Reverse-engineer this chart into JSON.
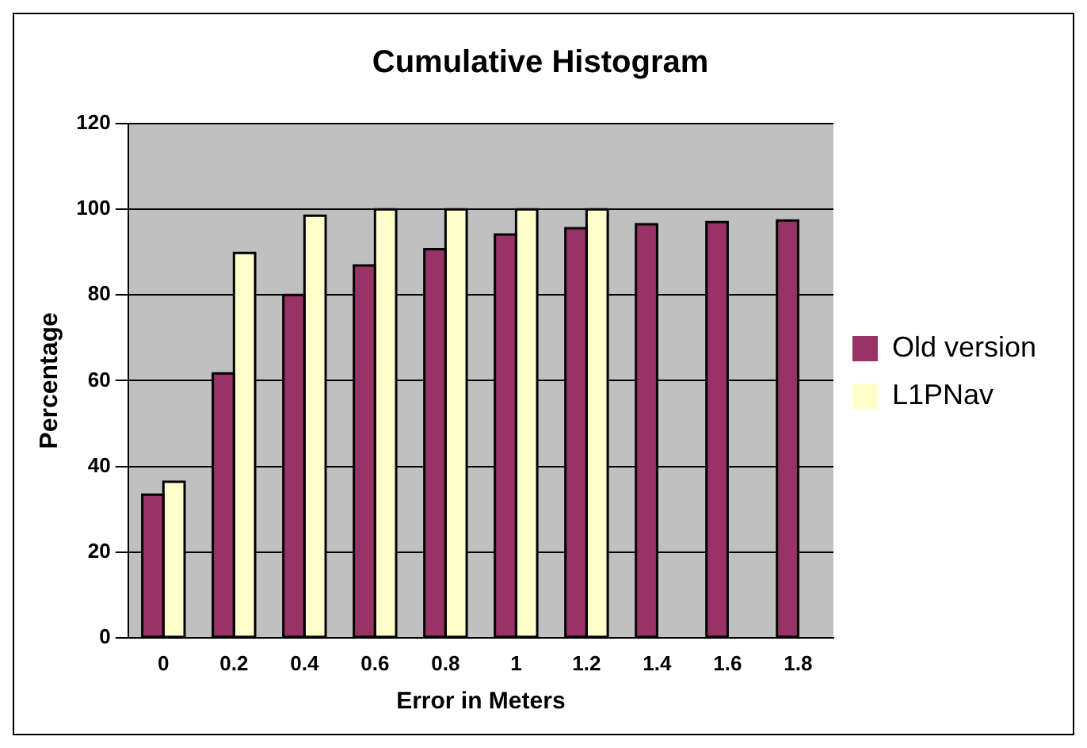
{
  "chart_data": {
    "type": "bar",
    "title": "Cumulative Histogram",
    "xlabel": "Error in Meters",
    "ylabel": "Percentage",
    "categories": [
      "0",
      "0.2",
      "0.4",
      "0.6",
      "0.8",
      "1",
      "1.2",
      "1.4",
      "1.6",
      "1.8"
    ],
    "series": [
      {
        "name": "Old version",
        "color": "#993366",
        "values": [
          33.4,
          61.7,
          80,
          86.9,
          90.7,
          94.1,
          95.6,
          96.5,
          97,
          97.4
        ]
      },
      {
        "name": "L1PNav",
        "color": "#ffffcc",
        "values": [
          36.4,
          89.8,
          98.5,
          100,
          100,
          100,
          100,
          null,
          null,
          null
        ]
      }
    ],
    "ylim": [
      0,
      120
    ],
    "yticks": [
      0,
      20,
      40,
      60,
      80,
      100,
      120
    ],
    "grid": "y",
    "legend": "right"
  }
}
